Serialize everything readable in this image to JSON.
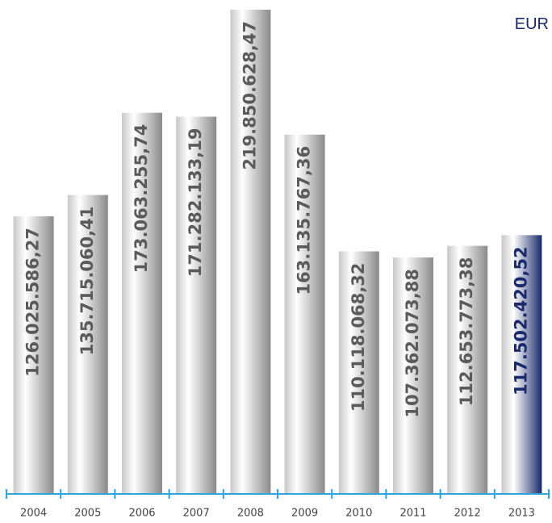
{
  "chart_data": {
    "type": "bar",
    "unit": "EUR",
    "categories": [
      "2004",
      "2005",
      "2006",
      "2007",
      "2008",
      "2009",
      "2010",
      "2011",
      "2012",
      "2013"
    ],
    "values": [
      126025586.27,
      135715060.41,
      173063255.74,
      171282133.19,
      219850628.47,
      163135767.36,
      110118068.32,
      107362073.88,
      112653773.38,
      117502420.52
    ],
    "value_labels": [
      "126.025.586,27",
      "135.715.060,41",
      "173.063.255,74",
      "171.282.133,19",
      "219.850.628,47",
      "163.135.767,36",
      "110.118.068,32",
      "107.362.073,88",
      "112.653.773,38",
      "117.502.420,52"
    ],
    "colors": [
      "#8a8a8a",
      "#8a8a8a",
      "#8a8a8a",
      "#8a8a8a",
      "#8a8a8a",
      "#8a8a8a",
      "#8a8a8a",
      "#8a8a8a",
      "#8a8a8a",
      "#1a2a6c"
    ],
    "label_colors": [
      "#5a5a5a",
      "#5a5a5a",
      "#5a5a5a",
      "#5a5a5a",
      "#5a5a5a",
      "#5a5a5a",
      "#5a5a5a",
      "#5a5a5a",
      "#5a5a5a",
      "#1a2a6c"
    ],
    "axis_color": "#2ea3dc"
  }
}
